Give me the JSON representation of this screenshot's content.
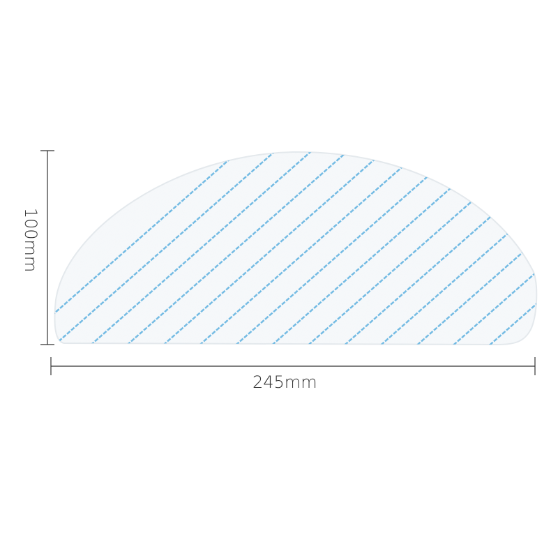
{
  "dimensions": {
    "width_label": "245mm",
    "height_label": "100mm"
  },
  "colors": {
    "pad": "#f7f9fb",
    "stripe": "#5bb0e0",
    "dimension_line": "#333333"
  }
}
